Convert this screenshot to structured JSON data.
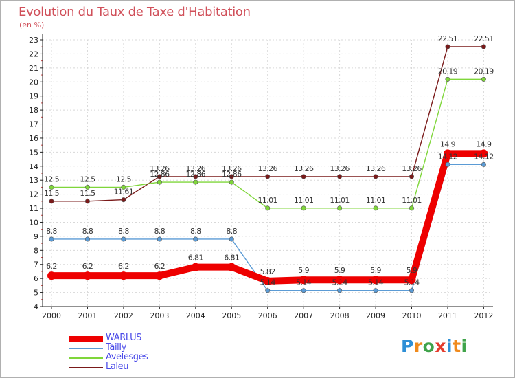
{
  "title": "Evolution du Taux de Taxe d'Habitation",
  "unit": "(en %)",
  "logo": {
    "text": "Proxiti",
    "letters": [
      "P",
      "r",
      "o",
      "x",
      "i",
      "t",
      "i"
    ],
    "letter_colors": [
      "#2e8fd6",
      "#f08a1c",
      "#3fa34a",
      "#e33b2c",
      "#2e8fd6",
      "#f08a1c",
      "#3fa34a"
    ]
  },
  "chart_data": {
    "type": "line",
    "title": "Evolution du Taux de Taxe d'Habitation",
    "ylabel": "(en %)",
    "xlabel": "",
    "x": [
      "2000",
      "2001",
      "2002",
      "2003",
      "2004",
      "2005",
      "2006",
      "2007",
      "2008",
      "2009",
      "2010",
      "2011",
      "2012"
    ],
    "ylim": [
      4,
      23
    ],
    "yticks": [
      4,
      5,
      6,
      7,
      8,
      9,
      10,
      11,
      12,
      13,
      14,
      15,
      16,
      17,
      18,
      19,
      20,
      21,
      22,
      23
    ],
    "grid": true,
    "legend_position": "bottom-left",
    "series": [
      {
        "name": "Laleu",
        "color": "#7a1a1a",
        "values": [
          11.5,
          11.5,
          11.61,
          13.26,
          13.26,
          13.26,
          13.26,
          13.26,
          13.26,
          13.26,
          13.26,
          22.51,
          22.51
        ],
        "labels": [
          "11.5",
          "11.5",
          "11.61",
          "13.26",
          "13.26",
          "13.26",
          "13.26",
          "13.26",
          "13.26",
          "13.26",
          "13.26",
          "22.51",
          "22.51"
        ]
      },
      {
        "name": "Avelesges",
        "color": "#7fd63a",
        "values": [
          12.5,
          12.5,
          12.5,
          12.86,
          12.86,
          12.86,
          11.01,
          11.01,
          11.01,
          11.01,
          11.01,
          20.19,
          20.19
        ],
        "labels": [
          "12.5",
          "12.5",
          "12.5",
          "12.86",
          "12.86",
          "12.86",
          "11.01",
          "11.01",
          "11.01",
          "11.01",
          "11.01",
          "20.19",
          "20.19"
        ]
      },
      {
        "name": "Tailly",
        "color": "#5b9bd5",
        "values": [
          8.8,
          8.8,
          8.8,
          8.8,
          8.8,
          8.8,
          5.14,
          5.14,
          5.14,
          5.14,
          5.14,
          14.12,
          14.12
        ],
        "labels": [
          "8.8",
          "8.8",
          "8.8",
          "8.8",
          "8.8",
          "8.8",
          "5.14",
          "5.14",
          "5.14",
          "5.14",
          "5.14",
          "14.12",
          "14.12"
        ]
      },
      {
        "name": "WARLUS",
        "color": "#ee0000",
        "values": [
          6.2,
          6.2,
          6.2,
          6.2,
          6.81,
          6.81,
          5.82,
          5.9,
          5.9,
          5.9,
          5.9,
          14.9,
          14.9
        ],
        "labels": [
          "6.2",
          "6.2",
          "6.2",
          "6.2",
          "6.81",
          "6.81",
          "5.82",
          "5.9",
          "5.9",
          "5.9",
          "5.9",
          "14.9",
          "14.9"
        ]
      }
    ],
    "legend": [
      "WARLUS",
      "Tailly",
      "Avelesges",
      "Laleu"
    ]
  }
}
